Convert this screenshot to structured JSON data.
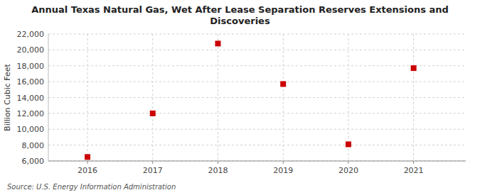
{
  "chart_data": {
    "type": "scatter",
    "title": "Annual Texas Natural Gas, Wet After Lease Separation Reserves Extensions and Discoveries",
    "ylabel": "Billion Cubic Feet",
    "annotations": [
      "Source: U.S. Energy Information Administration"
    ],
    "x": [
      2016,
      2017,
      2018,
      2019,
      2020,
      2021
    ],
    "values": [
      6500,
      12000,
      20800,
      15700,
      8100,
      17700
    ],
    "xlim": [
      2015.4,
      2021.8
    ],
    "xticks": [
      2016,
      2017,
      2018,
      2019,
      2020,
      2021
    ],
    "ylim": [
      6000,
      22000
    ],
    "yticks": [
      {
        "value": 6000,
        "label": "6,000"
      },
      {
        "value": 8000,
        "label": "8,000"
      },
      {
        "value": 10000,
        "label": "10,000"
      },
      {
        "value": 12000,
        "label": "12,000"
      },
      {
        "value": 14000,
        "label": "14,000"
      },
      {
        "value": 16000,
        "label": "16,000"
      },
      {
        "value": 18000,
        "label": "18,000"
      },
      {
        "value": 20000,
        "label": "20,000"
      },
      {
        "value": 22000,
        "label": "22,000"
      }
    ],
    "color": "#cc0000",
    "marker": "square",
    "grid": true
  }
}
